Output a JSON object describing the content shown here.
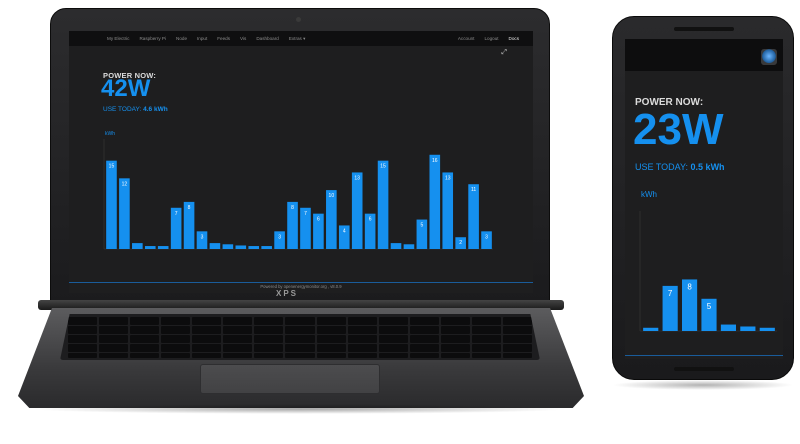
{
  "laptop": {
    "brand": "XPS",
    "nav": {
      "left": [
        "My Electric",
        "Raspberry Pi",
        "Node",
        "Input",
        "Feeds",
        "Vis",
        "Dashboard",
        "Extras ▾"
      ],
      "right": [
        "Account",
        "Logout",
        "Docs"
      ]
    },
    "power_label": "POWER NOW:",
    "power_value": "42W",
    "use_today_label": "USE TODAY:",
    "use_today_value": "4.6 kWh",
    "footer": "Powered by openenergymonitor.org , v8.0.9",
    "accent_color": "#1590ef"
  },
  "phone": {
    "power_label": "POWER NOW:",
    "power_value": "23W",
    "use_today_label": "USE TODAY:",
    "use_today_value": "0.5 kWh",
    "accent_color": "#1590ef"
  },
  "chart_data": [
    {
      "type": "bar",
      "ylabel": "kWh",
      "values": [
        15,
        12,
        1,
        0.5,
        0.5,
        7,
        8,
        3,
        1,
        0.8,
        0.6,
        0.5,
        0.5,
        3,
        8,
        7,
        6,
        10,
        4,
        13,
        6,
        15,
        1,
        0.8,
        5,
        16,
        13,
        2,
        11,
        3
      ],
      "labels": [
        "15",
        "12",
        "",
        "",
        "",
        "7",
        "8",
        "3",
        "",
        "",
        "",
        "",
        "",
        "3",
        "8",
        "7",
        "6",
        "10",
        "4",
        "13",
        "6",
        "15",
        "",
        "",
        "5",
        "16",
        "13",
        "2",
        "11",
        "3"
      ],
      "ylim": [
        0,
        18
      ],
      "color": "#1590ef"
    },
    {
      "type": "bar",
      "ylabel": "kWh",
      "values": [
        0.5,
        7,
        8,
        5,
        1,
        0.7,
        0.5
      ],
      "labels": [
        "",
        "7",
        "8",
        "5",
        "",
        "",
        ""
      ],
      "ylim": [
        0,
        18
      ],
      "color": "#1590ef"
    }
  ]
}
